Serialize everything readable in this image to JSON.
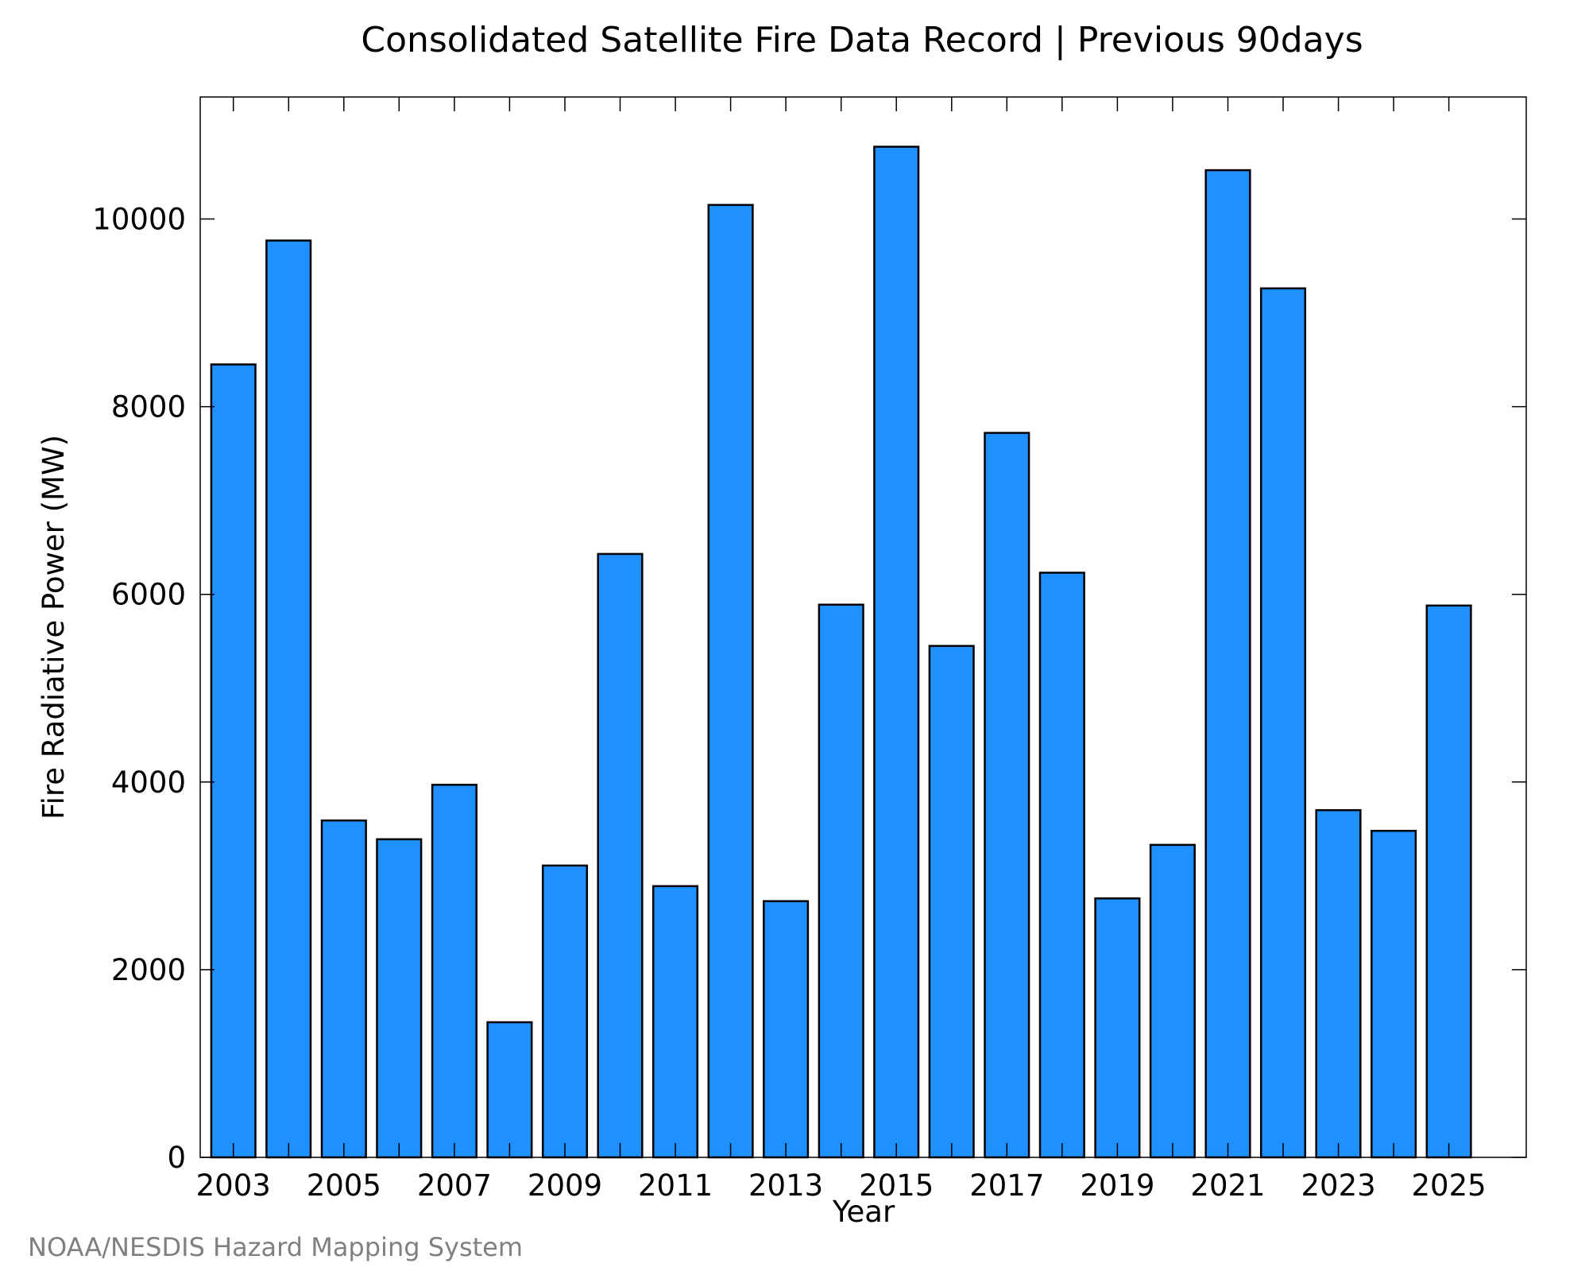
{
  "chart_data": {
    "type": "bar",
    "title": "Consolidated Satellite Fire Data Record | Previous 90days",
    "xlabel": "Year",
    "ylabel": "Fire Radiative Power (MW)",
    "categories": [
      "2003",
      "2004",
      "2005",
      "2006",
      "2007",
      "2008",
      "2009",
      "2010",
      "2011",
      "2012",
      "2013",
      "2014",
      "2015",
      "2016",
      "2017",
      "2018",
      "2019",
      "2020",
      "2021",
      "2022",
      "2023",
      "2024",
      "2025"
    ],
    "values": [
      8450,
      9770,
      3590,
      3390,
      3970,
      1440,
      3110,
      6430,
      2890,
      10150,
      2730,
      5890,
      10770,
      5450,
      7720,
      6230,
      2760,
      3330,
      10520,
      9260,
      3700,
      3480,
      5880
    ],
    "xtick_labels": [
      "2003",
      "2005",
      "2007",
      "2009",
      "2011",
      "2013",
      "2015",
      "2017",
      "2019",
      "2021",
      "2023",
      "2025"
    ],
    "yticks": [
      0,
      2000,
      4000,
      6000,
      8000,
      10000
    ],
    "ytick_labels": [
      "0",
      "2000",
      "4000",
      "6000",
      "8000",
      "10000"
    ],
    "ylim": [
      0,
      11300
    ],
    "xlim": [
      2002.4,
      2026.4
    ],
    "grid": false,
    "bar_color": "#1e90ff",
    "bar_edge_color": "#000000",
    "credit": "NOAA/NESDIS Hazard Mapping System"
  }
}
